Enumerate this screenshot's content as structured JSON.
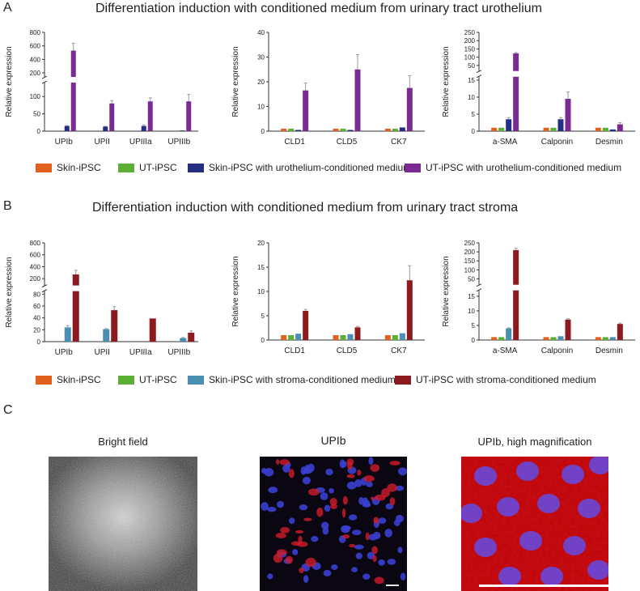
{
  "panels": {
    "A": {
      "letter": "A",
      "title": "Differentiation induction with conditioned medium from urinary tract urothelium",
      "legend": [
        {
          "label": "Skin-iPSC",
          "color": "#e0601e"
        },
        {
          "label": "UT-iPSC",
          "color": "#5cae34"
        },
        {
          "label": "Skin-iPSC with urothelium-conditioned medium",
          "color": "#262e83"
        },
        {
          "label": "UT-iPSC with urothelium-conditioned medium",
          "color": "#7b2a92"
        }
      ]
    },
    "B": {
      "letter": "B",
      "title": "Differentiation induction with conditioned medium from urinary tract stroma",
      "legend": [
        {
          "label": "Skin-iPSC",
          "color": "#e0601e"
        },
        {
          "label": "UT-iPSC",
          "color": "#5cae34"
        },
        {
          "label": "Skin-iPSC with stroma-conditioned medium",
          "color": "#4a8fb2"
        },
        {
          "label": "UT-iPSC with stroma-conditioned medium",
          "color": "#8c1a1f"
        }
      ]
    },
    "C": {
      "letter": "C",
      "images": [
        {
          "title": "Bright field"
        },
        {
          "title": "UPIb"
        },
        {
          "title": "UPIb, high magnification"
        }
      ]
    }
  },
  "chart_data": [
    {
      "id": "A1",
      "type": "bar",
      "panel": "A",
      "ylabel": "Relative expression",
      "categories": [
        "UPIb",
        "UPII",
        "UPIIIa",
        "UPIIIb"
      ],
      "broken_axis": {
        "lower": [
          0,
          140
        ],
        "upper": [
          140,
          800
        ],
        "lower_ticks": [
          0,
          50,
          100
        ],
        "upper_ticks": [
          200,
          400,
          600,
          800
        ]
      },
      "series": [
        {
          "name": "Skin-iPSC",
          "color": "#e0601e",
          "values": [
            0,
            0,
            0,
            0
          ],
          "errors": [
            0,
            0,
            0,
            0
          ]
        },
        {
          "name": "UT-iPSC",
          "color": "#5cae34",
          "values": [
            0,
            0,
            0,
            0
          ],
          "errors": [
            0,
            0,
            0,
            0
          ]
        },
        {
          "name": "Skin-iPSC with urothelium-conditioned medium",
          "color": "#262e83",
          "values": [
            15,
            13,
            15,
            2
          ],
          "errors": [
            1,
            1,
            3,
            0
          ]
        },
        {
          "name": "UT-iPSC with urothelium-conditioned medium",
          "color": "#7b2a92",
          "values": [
            530,
            80,
            86,
            86
          ],
          "errors": [
            110,
            8,
            10,
            20
          ]
        }
      ]
    },
    {
      "id": "A2",
      "type": "bar",
      "panel": "A",
      "ylabel": "Relative expression",
      "categories": [
        "CLD1",
        "CLD5",
        "CK7"
      ],
      "ylim": [
        0,
        40
      ],
      "yticks": [
        0,
        10,
        20,
        30,
        40
      ],
      "series": [
        {
          "name": "Skin-iPSC",
          "color": "#e0601e",
          "values": [
            1,
            1,
            1
          ],
          "errors": [
            0,
            0,
            0
          ]
        },
        {
          "name": "UT-iPSC",
          "color": "#5cae34",
          "values": [
            1,
            1,
            1
          ],
          "errors": [
            0,
            0,
            0
          ]
        },
        {
          "name": "Skin-iPSC with urothelium-conditioned medium",
          "color": "#262e83",
          "values": [
            0.5,
            0.5,
            1.5
          ],
          "errors": [
            0,
            0,
            0
          ]
        },
        {
          "name": "UT-iPSC with urothelium-conditioned medium",
          "color": "#7b2a92",
          "values": [
            16.5,
            25,
            17.5
          ],
          "errors": [
            3,
            6,
            5
          ]
        }
      ]
    },
    {
      "id": "A3",
      "type": "bar",
      "panel": "A",
      "ylabel": "Relative expression",
      "categories": [
        "a-SMA",
        "Calponin",
        "Desmin"
      ],
      "broken_axis": {
        "lower": [
          0,
          16
        ],
        "upper": [
          16,
          250
        ],
        "lower_ticks": [
          0,
          5,
          10,
          15
        ],
        "upper_ticks": [
          50,
          100,
          150,
          200,
          250
        ]
      },
      "series": [
        {
          "name": "Skin-iPSC",
          "color": "#e0601e",
          "values": [
            1,
            1,
            1
          ],
          "errors": [
            0,
            0,
            0
          ]
        },
        {
          "name": "UT-iPSC",
          "color": "#5cae34",
          "values": [
            1,
            1,
            1
          ],
          "errors": [
            0,
            0,
            0
          ]
        },
        {
          "name": "Skin-iPSC with urothelium-conditioned medium",
          "color": "#262e83",
          "values": [
            3.5,
            3.5,
            0.5
          ],
          "errors": [
            0.5,
            0.5,
            0
          ]
        },
        {
          "name": "UT-iPSC with urothelium-conditioned medium",
          "color": "#7b2a92",
          "values": [
            123,
            9.5,
            2
          ],
          "errors": [
            5,
            2,
            0.5
          ]
        }
      ]
    },
    {
      "id": "B1",
      "type": "bar",
      "panel": "B",
      "ylabel": "Relative expression",
      "categories": [
        "UPIb",
        "UPII",
        "UPIIIa",
        "UPIIIb"
      ],
      "broken_axis": {
        "lower": [
          0,
          85
        ],
        "upper": [
          85,
          800
        ],
        "lower_ticks": [
          0,
          20,
          40,
          60,
          80
        ],
        "upper_ticks": [
          200,
          400,
          600,
          800
        ]
      },
      "series": [
        {
          "name": "Skin-iPSC",
          "color": "#e0601e",
          "values": [
            0,
            0,
            0,
            0
          ],
          "errors": [
            0,
            0,
            0,
            0
          ]
        },
        {
          "name": "UT-iPSC",
          "color": "#5cae34",
          "values": [
            0,
            0,
            0,
            0
          ],
          "errors": [
            0,
            0,
            0,
            0
          ]
        },
        {
          "name": "Skin-iPSC with stroma-conditioned medium",
          "color": "#4a8fb2",
          "values": [
            24,
            21,
            0,
            6
          ],
          "errors": [
            3,
            1,
            0,
            1
          ]
        },
        {
          "name": "UT-iPSC with stroma-conditioned medium",
          "color": "#8c1a1f",
          "values": [
            270,
            53,
            39,
            15
          ],
          "errors": [
            70,
            6,
            0,
            3
          ]
        }
      ]
    },
    {
      "id": "B2",
      "type": "bar",
      "panel": "B",
      "ylabel": "Relative expression",
      "categories": [
        "CLD1",
        "CLD5",
        "CK7"
      ],
      "ylim": [
        0,
        20
      ],
      "yticks": [
        0,
        5,
        10,
        15,
        20
      ],
      "series": [
        {
          "name": "Skin-iPSC",
          "color": "#e0601e",
          "values": [
            1,
            1,
            1
          ],
          "errors": [
            0,
            0,
            0
          ]
        },
        {
          "name": "UT-iPSC",
          "color": "#5cae34",
          "values": [
            1,
            1,
            1
          ],
          "errors": [
            0,
            0,
            0
          ]
        },
        {
          "name": "Skin-iPSC with stroma-conditioned medium",
          "color": "#4a8fb2",
          "values": [
            1.3,
            1.2,
            1.4
          ],
          "errors": [
            0,
            0,
            0
          ]
        },
        {
          "name": "UT-iPSC with stroma-conditioned medium",
          "color": "#8c1a1f",
          "values": [
            6,
            2.6,
            12.3
          ],
          "errors": [
            0.3,
            0.2,
            3
          ]
        }
      ]
    },
    {
      "id": "B3",
      "type": "bar",
      "panel": "B",
      "ylabel": "Relative expression",
      "categories": [
        "a-SMA",
        "Calponin",
        "Desmin"
      ],
      "broken_axis": {
        "lower": [
          0,
          17
        ],
        "upper": [
          17,
          250
        ],
        "lower_ticks": [
          0,
          5,
          10,
          15
        ],
        "upper_ticks": [
          50,
          100,
          150,
          200,
          250
        ]
      },
      "series": [
        {
          "name": "Skin-iPSC",
          "color": "#e0601e",
          "values": [
            1,
            1,
            1
          ],
          "errors": [
            0,
            0,
            0
          ]
        },
        {
          "name": "UT-iPSC",
          "color": "#5cae34",
          "values": [
            1,
            1,
            1
          ],
          "errors": [
            0,
            0,
            0
          ]
        },
        {
          "name": "Skin-iPSC with stroma-conditioned medium",
          "color": "#4a8fb2",
          "values": [
            4,
            1.3,
            1
          ],
          "errors": [
            0.2,
            0,
            0
          ]
        },
        {
          "name": "UT-iPSC with stroma-conditioned medium",
          "color": "#8c1a1f",
          "values": [
            210,
            7,
            5.5
          ],
          "errors": [
            10,
            0.3,
            0.3
          ]
        }
      ]
    }
  ]
}
